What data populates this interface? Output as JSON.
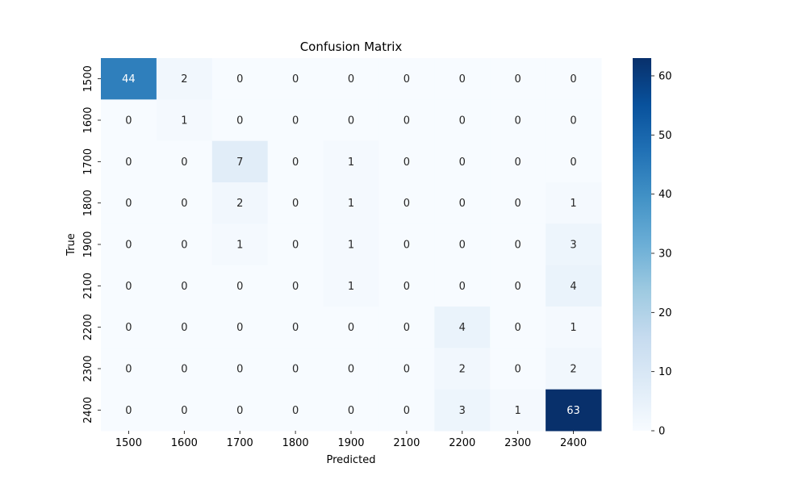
{
  "chart_data": {
    "type": "heatmap",
    "title": "Confusion Matrix",
    "xlabel": "Predicted",
    "ylabel": "True",
    "x_categories": [
      "1500",
      "1600",
      "1700",
      "1800",
      "1900",
      "2100",
      "2200",
      "2300",
      "2400"
    ],
    "y_categories": [
      "1500",
      "1600",
      "1700",
      "1800",
      "1900",
      "2100",
      "2200",
      "2300",
      "2400"
    ],
    "values": [
      [
        44,
        2,
        0,
        0,
        0,
        0,
        0,
        0,
        0
      ],
      [
        0,
        1,
        0,
        0,
        0,
        0,
        0,
        0,
        0
      ],
      [
        0,
        0,
        7,
        0,
        1,
        0,
        0,
        0,
        0
      ],
      [
        0,
        0,
        2,
        0,
        1,
        0,
        0,
        0,
        1
      ],
      [
        0,
        0,
        1,
        0,
        1,
        0,
        0,
        0,
        3
      ],
      [
        0,
        0,
        0,
        0,
        1,
        0,
        0,
        0,
        4
      ],
      [
        0,
        0,
        0,
        0,
        0,
        0,
        4,
        0,
        1
      ],
      [
        0,
        0,
        0,
        0,
        0,
        0,
        2,
        0,
        2
      ],
      [
        0,
        0,
        0,
        0,
        0,
        0,
        3,
        1,
        63
      ]
    ],
    "colormap": "Blues",
    "colorbar": {
      "min": 0,
      "max": 63,
      "ticks": [
        0,
        10,
        20,
        30,
        40,
        50,
        60
      ]
    }
  }
}
